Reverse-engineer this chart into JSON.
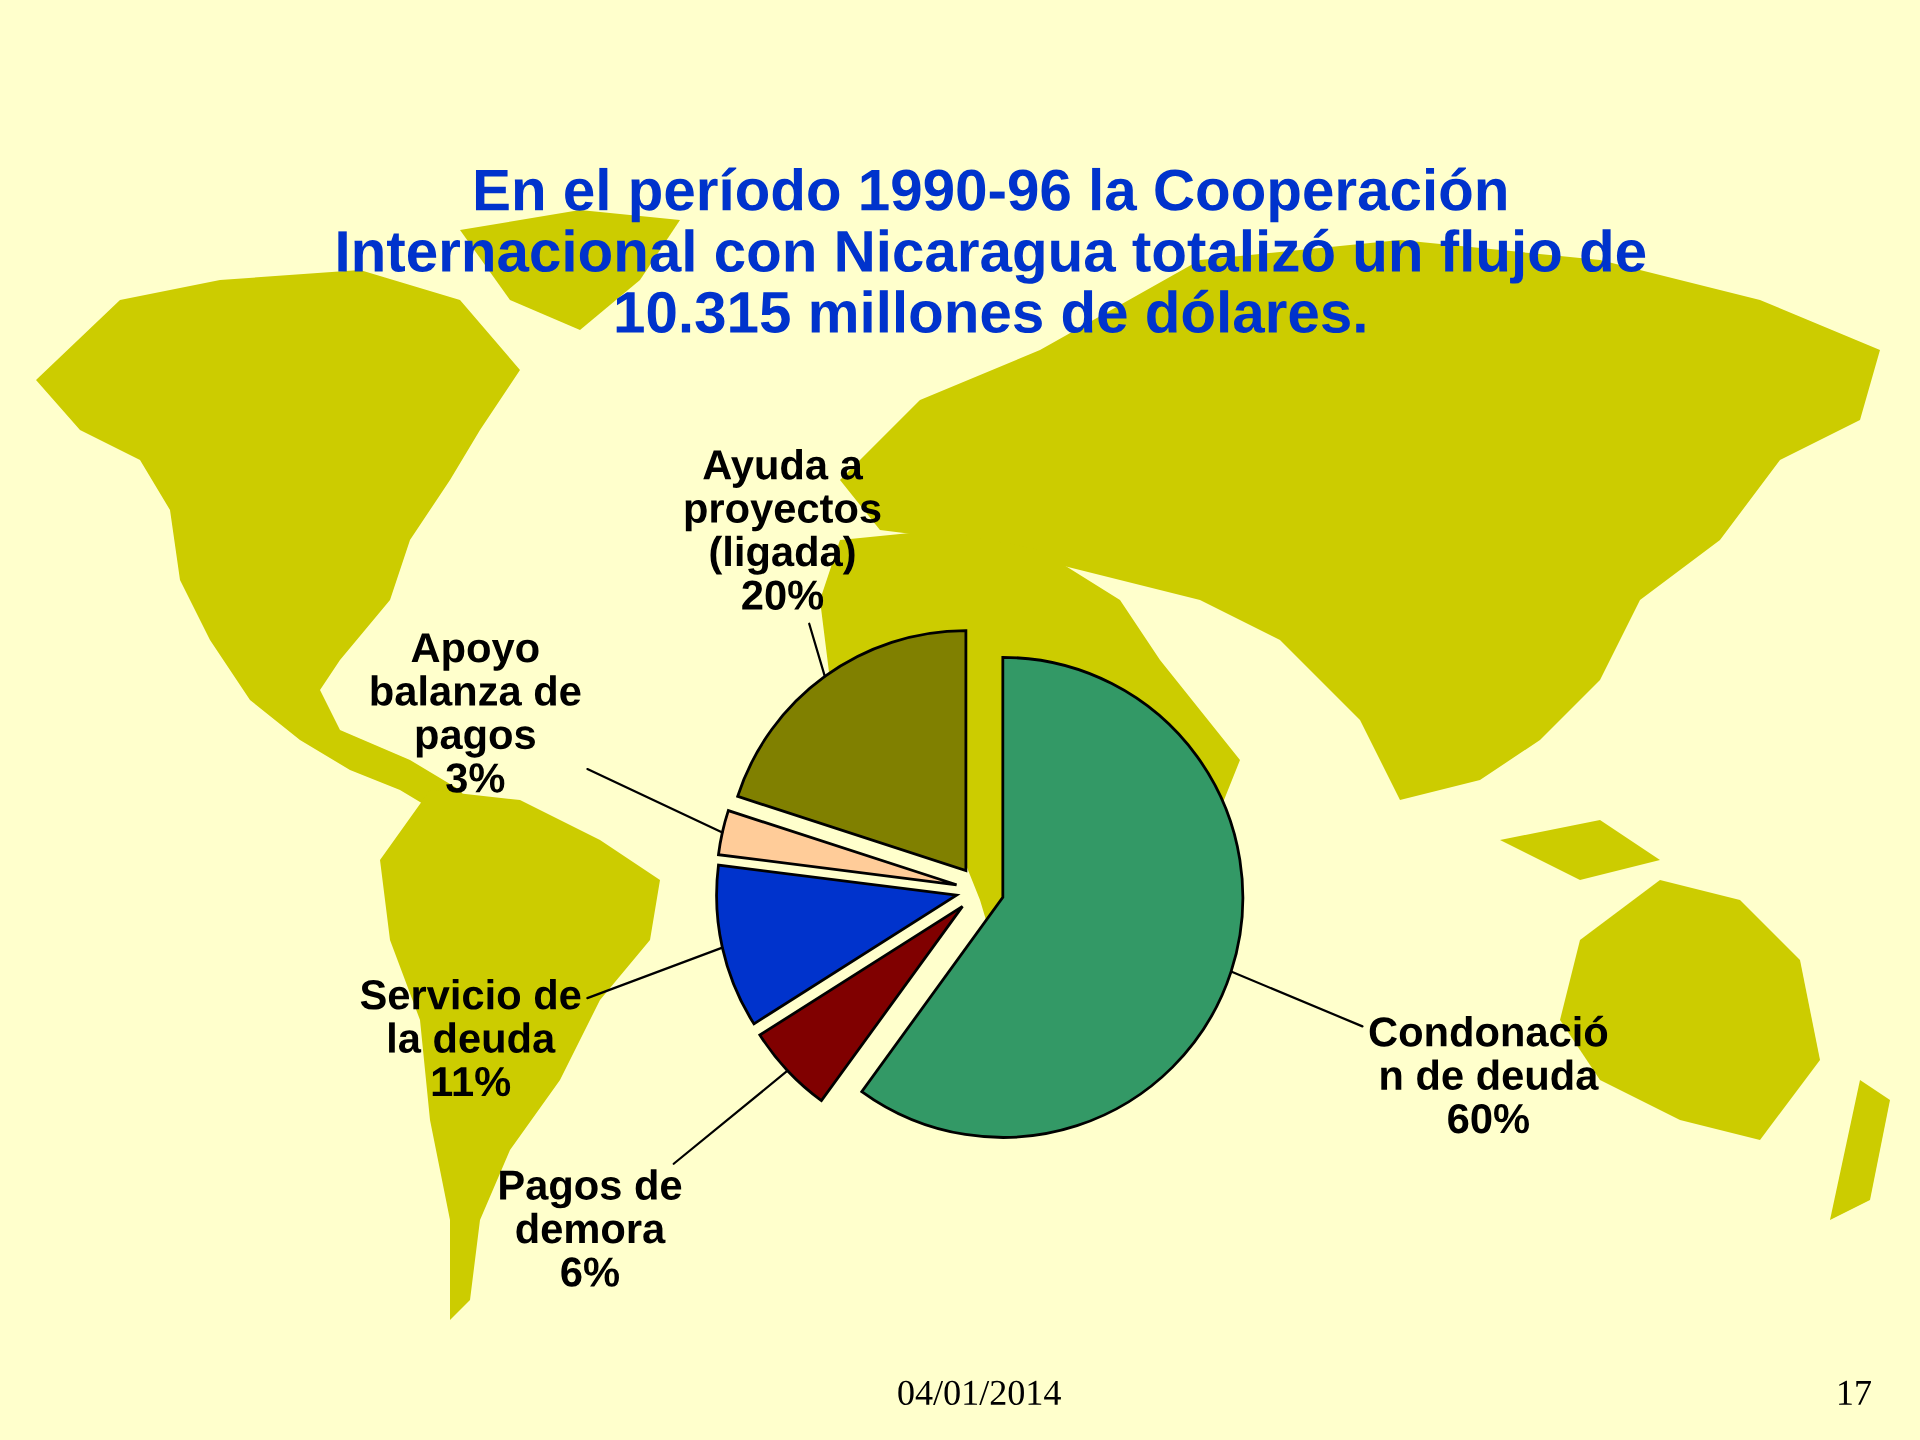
{
  "chart_data": {
    "type": "pie",
    "title": "En el período 1990-96 la Cooperación\nInternacional con Nicaragua totalizó un flujo de\n10.315 millones de dólares.",
    "categories": [
      "Condonació\nn de deuda",
      "Pagos de\ndemora",
      "Servicio de\nla deuda",
      "Apoyo\nbalanza de\npagos",
      "Ayuda a\nproyectos\n(ligada)"
    ],
    "values": [
      60,
      6,
      11,
      3,
      20
    ],
    "colors": [
      "#339966",
      "#800000",
      "#0033cc",
      "#ffcc99",
      "#808000"
    ],
    "value_labels": [
      "60%",
      "6%",
      "11%",
      "3%",
      "20%"
    ],
    "annotations": [
      "04/01/2014",
      "17"
    ]
  }
}
